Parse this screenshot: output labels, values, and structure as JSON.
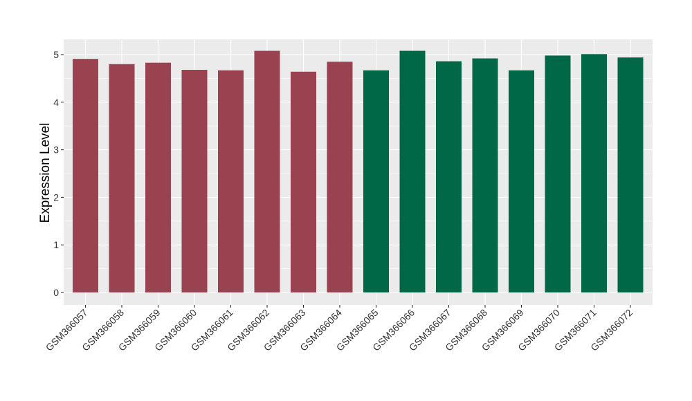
{
  "chart_data": {
    "type": "bar",
    "title": "",
    "xlabel": "",
    "ylabel": "Expression Level",
    "ylim": [
      0,
      5.3
    ],
    "yticks": [
      0,
      1,
      2,
      3,
      4,
      5
    ],
    "grid": true,
    "legend": "none",
    "categories": [
      "GSM366057",
      "GSM366058",
      "GSM366059",
      "GSM366060",
      "GSM366061",
      "GSM366062",
      "GSM366063",
      "GSM366064",
      "GSM366065",
      "GSM366066",
      "GSM366067",
      "GSM366068",
      "GSM366069",
      "GSM366070",
      "GSM366071",
      "GSM366072"
    ],
    "values": [
      4.91,
      4.8,
      4.83,
      4.68,
      4.67,
      5.08,
      4.64,
      4.85,
      4.67,
      5.08,
      4.86,
      4.92,
      4.67,
      4.98,
      5.01,
      4.94
    ],
    "groups": [
      1,
      1,
      1,
      1,
      1,
      1,
      1,
      1,
      2,
      2,
      2,
      2,
      2,
      2,
      2,
      2
    ],
    "colors": {
      "group_1": "#9b4250",
      "group_2": "#006747",
      "panel_bg": "#ebebeb",
      "grid": "#ffffff"
    }
  }
}
